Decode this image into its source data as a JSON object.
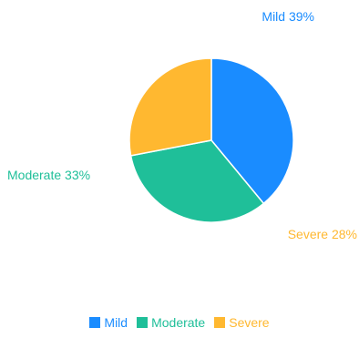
{
  "chart_data": {
    "type": "pie",
    "categories": [
      "Mild",
      "Moderate",
      "Severe"
    ],
    "values": [
      39,
      33,
      28
    ],
    "labels": [
      "Mild 39%",
      "Moderate 33%",
      "Severe 28%"
    ],
    "colors": [
      "#1a8cff",
      "#1fbf99",
      "#ffb830"
    ],
    "legend_position": "bottom",
    "title": "",
    "start_angle_deg": 90,
    "direction": "clockwise"
  },
  "legend": {
    "items": [
      {
        "label": "Mild",
        "color": "#1a8cff"
      },
      {
        "label": "Moderate",
        "color": "#1fbf99"
      },
      {
        "label": "Severe",
        "color": "#ffb830"
      }
    ]
  }
}
